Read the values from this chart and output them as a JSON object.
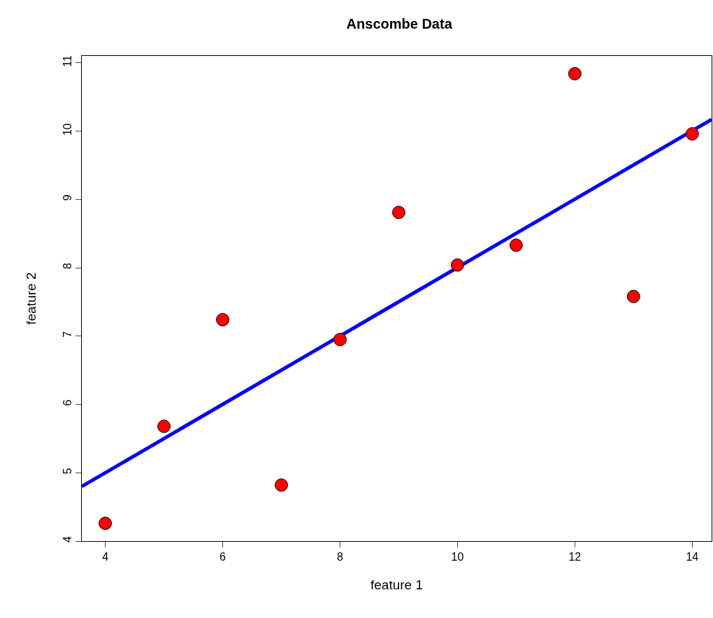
{
  "chart_data": {
    "type": "scatter",
    "title": "Anscombe Data",
    "xlabel": "feature 1",
    "ylabel": "feature 2",
    "x": [
      10,
      8,
      13,
      9,
      11,
      14,
      6,
      4,
      12,
      7,
      5
    ],
    "series": [
      {
        "color": "#ff0000",
        "marker": "circle",
        "values": [
          8.04,
          6.95,
          7.58,
          8.81,
          8.33,
          9.96,
          7.24,
          4.26,
          10.84,
          4.82,
          5.68
        ]
      },
      {
        "type": "line",
        "color": "#0000ff",
        "x": [
          3.6,
          14.33
        ],
        "values": [
          4.8,
          10.17
        ]
      }
    ],
    "line_style": "solid",
    "grid": false,
    "xlim": [
      3.6,
      14.33
    ],
    "ylim": [
      4.0,
      11.1
    ],
    "xticks": [
      4,
      6,
      8,
      10,
      12,
      14
    ],
    "yticks": [
      4,
      5,
      6,
      7,
      8,
      9,
      10,
      11
    ]
  }
}
